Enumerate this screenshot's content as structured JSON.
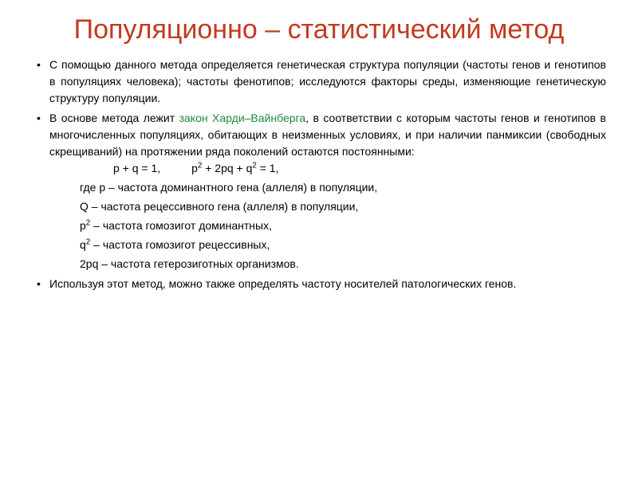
{
  "title": {
    "text": "Популяционно – статистический метод",
    "color": "#c23a1f",
    "fontsize": 34
  },
  "body": {
    "color": "#000000",
    "fontsize": 14,
    "law_color": "#1f8a3b"
  },
  "bullets": {
    "b1": "С помощью данного метода определяется генетическая структура популяции (частоты генов и генотипов в популяциях человека); частоты фенотипов; исследуются факторы среды, изменяющие генетическую структуру популяции.",
    "b2_pre": "В основе метода лежит ",
    "b2_law": "закон Харди–Вайнберга",
    "b2_post": ", в соответствии с которым частоты генов и генотипов в многочисленных популяциях, обитающих в неизменных условиях, и при наличии панмиксии (свободных скрещиваний) на протяжении ряда поколений остаются постоянными:",
    "b3": "Используя этот метод, можно также определять частоту носителей патологических генов."
  },
  "formulas": {
    "f1": "p + q = 1,",
    "f2_a": "p",
    "f2_b": " + 2pq + q",
    "f2_c": " = 1,",
    "gap": "          "
  },
  "defs": {
    "where": " где р – частота доминантного гена (аллеля) в популяции,",
    "q": " Q – частота рецессивного гена (аллеля) в популяции,",
    "p2_a": " р",
    "p2_b": " – частота гомозигот доминантных,",
    "q2_a": " q",
    "q2_b": " – частота гомозигот рецессивных,",
    "pq": " 2pq – частота гетерозиготных организмов."
  }
}
